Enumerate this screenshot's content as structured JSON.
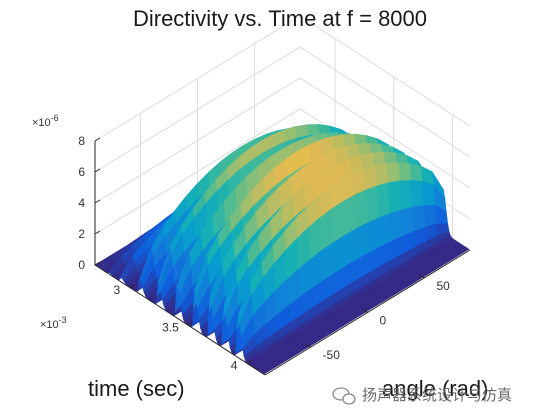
{
  "chart_data": {
    "type": "surface",
    "title": "Directivity vs. Time at f = 8000",
    "xlabel": "time (sec)",
    "ylabel": "angle (rad)",
    "zlabel": "",
    "x_exponent_label": "×10",
    "x_exponent_power": "-3",
    "z_exponent_label": "×10",
    "z_exponent_power": "-6",
    "xlim": [
      2.7,
      4.15
    ],
    "ylim": [
      -90,
      90
    ],
    "zlim": [
      0,
      8
    ],
    "x_ticks": [
      3,
      3.5,
      4
    ],
    "x_tick_labels": [
      "3",
      "3.5",
      "4"
    ],
    "y_ticks": [
      -50,
      0,
      50
    ],
    "y_tick_labels": [
      "-50",
      "0",
      "50"
    ],
    "z_ticks": [
      0,
      2,
      4,
      6,
      8
    ],
    "z_tick_labels": [
      "0",
      "2",
      "4",
      "6",
      "8"
    ],
    "colormap": "parula",
    "grid": true,
    "ridges": [
      {
        "t": 2.74,
        "edge": 0.02,
        "peak": 0.6
      },
      {
        "t": 2.82,
        "edge": 0.1,
        "peak": 1.6
      },
      {
        "t": 2.92,
        "edge": 0.3,
        "peak": 3.0
      },
      {
        "t": 3.08,
        "edge": 1.0,
        "peak": 5.6
      },
      {
        "t": 3.24,
        "edge": 1.6,
        "peak": 6.6
      },
      {
        "t": 3.4,
        "edge": 2.2,
        "peak": 7.2
      },
      {
        "t": 3.55,
        "edge": 2.6,
        "peak": 7.5
      },
      {
        "t": 3.68,
        "edge": 2.8,
        "peak": 7.6
      },
      {
        "t": 3.8,
        "edge": 2.9,
        "peak": 7.6
      },
      {
        "t": 3.92,
        "edge": 2.8,
        "peak": 7.5
      }
    ]
  },
  "watermark": {
    "text": "扬声器系统设计与仿真",
    "icon": "wechat-bubble-icon"
  }
}
